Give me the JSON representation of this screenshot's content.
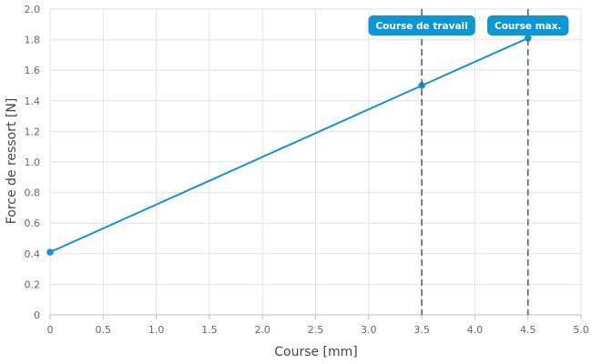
{
  "chart_data": {
    "type": "line",
    "xlabel": "Course [mm]",
    "ylabel": "Force de ressort [N]",
    "xlim": [
      0,
      5
    ],
    "ylim": [
      0,
      2
    ],
    "x_ticks": [
      "0",
      "0.5",
      "1.0",
      "1.5",
      "2.0",
      "2.5",
      "3.0",
      "3.5",
      "4.0",
      "4.5",
      "5.0"
    ],
    "y_ticks": [
      "0",
      "0.2",
      "0.4",
      "0.6",
      "0.8",
      "1.0",
      "1.2",
      "1.4",
      "1.6",
      "1.8",
      "2.0"
    ],
    "grid": true,
    "series": [
      {
        "color": "#1491d2",
        "points": [
          {
            "x": 0,
            "y": 0.41
          },
          {
            "x": 3.5,
            "y": 1.5
          },
          {
            "x": 4.5,
            "y": 1.81
          }
        ]
      }
    ],
    "markers": [
      {
        "x": 3.5,
        "label": "Course de travail"
      },
      {
        "x": 4.5,
        "label": "Course max."
      }
    ],
    "colors": {
      "line": "#1491d2",
      "label_bg": "#0b96d6",
      "marker_line": "#555555",
      "grid": "#e3e3e3"
    }
  }
}
